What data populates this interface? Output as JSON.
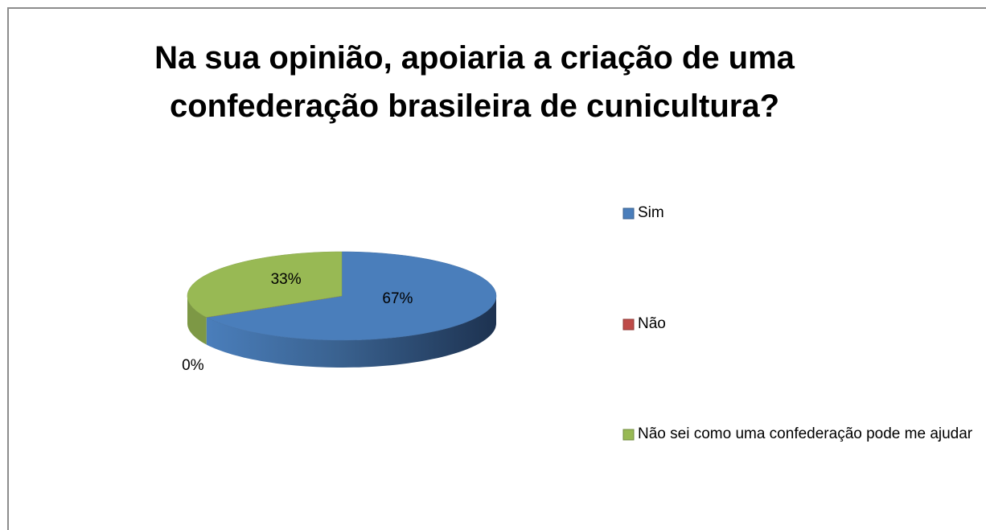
{
  "chart_data": {
    "type": "pie",
    "title": "Na sua opinião, apoiaria a criação de uma confederação brasileira de cunicultura?",
    "categories": [
      "Sim",
      "Não",
      "Não sei como uma confederação pode me ajudar"
    ],
    "values": [
      67,
      0,
      33
    ],
    "value_labels": [
      "67%",
      "0%",
      "33%"
    ],
    "colors": [
      "#4a7ebb",
      "#be4b48",
      "#98b954"
    ],
    "legend": "right"
  }
}
